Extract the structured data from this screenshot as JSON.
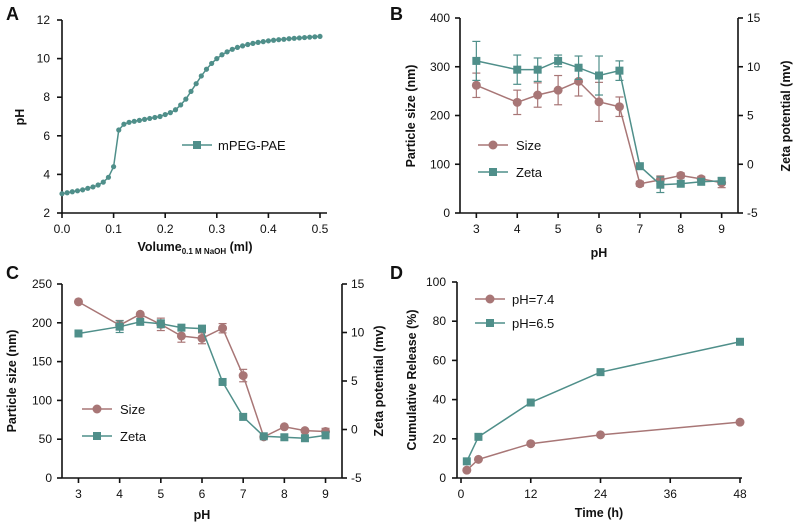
{
  "colors": {
    "teal": "#4f8f8a",
    "rose": "#a87676",
    "axis": "#111111"
  },
  "chart_data": [
    {
      "panel": "A",
      "type": "line",
      "xlabel_main": "Volume",
      "xlabel_sub": "0.1 M NaOH",
      "xlabel_unit": " (ml)",
      "ylabel": "pH",
      "xlim": [
        0,
        0.5
      ],
      "ylim": [
        2,
        12
      ],
      "xticks": [
        "0.0",
        "0.1",
        "0.2",
        "0.3",
        "0.4",
        "0.5"
      ],
      "yticks": [
        "2",
        "4",
        "6",
        "8",
        "10",
        "12"
      ],
      "legend": [
        "mPEG-PAE"
      ],
      "series": [
        {
          "name": "mPEG-PAE",
          "x": [
            0,
            0.01,
            0.02,
            0.03,
            0.04,
            0.05,
            0.06,
            0.07,
            0.08,
            0.09,
            0.1,
            0.11,
            0.12,
            0.13,
            0.14,
            0.15,
            0.16,
            0.17,
            0.18,
            0.19,
            0.2,
            0.21,
            0.22,
            0.23,
            0.24,
            0.25,
            0.26,
            0.27,
            0.28,
            0.29,
            0.3,
            0.31,
            0.32,
            0.33,
            0.34,
            0.35,
            0.36,
            0.37,
            0.38,
            0.39,
            0.4,
            0.41,
            0.42,
            0.43,
            0.44,
            0.45,
            0.46,
            0.47,
            0.48,
            0.49,
            0.5
          ],
          "y": [
            3.0,
            3.05,
            3.1,
            3.15,
            3.2,
            3.28,
            3.35,
            3.45,
            3.6,
            3.85,
            4.4,
            6.3,
            6.6,
            6.7,
            6.75,
            6.8,
            6.85,
            6.9,
            6.95,
            7.0,
            7.1,
            7.2,
            7.35,
            7.6,
            7.9,
            8.3,
            8.7,
            9.1,
            9.45,
            9.75,
            10.0,
            10.2,
            10.35,
            10.48,
            10.58,
            10.66,
            10.73,
            10.79,
            10.84,
            10.88,
            10.92,
            10.95,
            10.98,
            11.0,
            11.03,
            11.05,
            11.07,
            11.09,
            11.11,
            11.13,
            11.15
          ]
        }
      ]
    },
    {
      "panel": "B",
      "type": "line",
      "xlabel": "pH",
      "ylabel_left": "Particle size (nm)",
      "ylabel_right": "Zeta potential (mv)",
      "xlim": [
        2.6,
        9.4
      ],
      "ylim_left": [
        0,
        400
      ],
      "ylim_right": [
        -5,
        15
      ],
      "xticks": [
        "3",
        "4",
        "5",
        "6",
        "7",
        "8",
        "9"
      ],
      "yticks_left": [
        "0",
        "100",
        "200",
        "300",
        "400"
      ],
      "yticks_right": [
        "-5",
        "0",
        "5",
        "10",
        "15"
      ],
      "legend": [
        "Size",
        "Zeta"
      ],
      "series": [
        {
          "name": "Size",
          "axis": "left",
          "x": [
            3,
            4,
            4.5,
            5,
            5.5,
            6,
            6.5,
            7,
            7.5,
            8,
            8.5,
            9
          ],
          "y": [
            262,
            227,
            242,
            252,
            270,
            228,
            218,
            60,
            68,
            77,
            70,
            62
          ],
          "err": [
            25,
            25,
            25,
            30,
            30,
            40,
            20,
            5,
            8,
            5,
            5,
            10
          ]
        },
        {
          "name": "Zeta",
          "axis": "right",
          "x": [
            3,
            4,
            4.5,
            5,
            5.5,
            6,
            6.5,
            7,
            7.5,
            8,
            8.5,
            9
          ],
          "y": [
            10.6,
            9.7,
            9.7,
            10.6,
            9.9,
            9.1,
            9.6,
            -0.2,
            -2.1,
            -2.0,
            -1.8,
            -1.7
          ],
          "err": [
            2,
            1.5,
            1.2,
            0.6,
            1.2,
            2,
            1,
            0,
            0.8,
            0,
            0,
            0
          ]
        }
      ]
    },
    {
      "panel": "C",
      "type": "line",
      "xlabel": "pH",
      "ylabel_left": "Particle size (nm)",
      "ylabel_right": "Zeta potential (mv)",
      "xlim": [
        2.6,
        9.4
      ],
      "ylim_left": [
        0,
        250
      ],
      "ylim_right": [
        -5,
        15
      ],
      "xticks": [
        "3",
        "4",
        "5",
        "6",
        "7",
        "8",
        "9"
      ],
      "yticks_left": [
        "0",
        "50",
        "100",
        "150",
        "200",
        "250"
      ],
      "yticks_right": [
        "-5",
        "0",
        "5",
        "10",
        "15"
      ],
      "legend": [
        "Size",
        "Zeta"
      ],
      "series": [
        {
          "name": "Size",
          "axis": "left",
          "x": [
            3,
            4,
            4.5,
            5,
            5.5,
            6,
            6.5,
            7,
            7.5,
            8,
            8.5,
            9
          ],
          "y": [
            227,
            197,
            211,
            198,
            183,
            180,
            193,
            132,
            53,
            66,
            61,
            60
          ],
          "err": [
            0,
            6,
            0,
            8,
            8,
            7,
            6,
            8,
            0,
            0,
            0,
            4
          ]
        },
        {
          "name": "Zeta",
          "axis": "right",
          "x": [
            3,
            4,
            4.5,
            5,
            5.5,
            6,
            6.5,
            7,
            7.5,
            8,
            8.5,
            9
          ],
          "y": [
            9.9,
            10.6,
            11.1,
            10.9,
            10.5,
            10.4,
            4.9,
            1.3,
            -0.7,
            -0.8,
            -0.9,
            -0.6
          ],
          "err": [
            0,
            0.6,
            0,
            0.4,
            0,
            0,
            0,
            0,
            0,
            0,
            0,
            0
          ]
        }
      ]
    },
    {
      "panel": "D",
      "type": "line",
      "xlabel": "Time (h)",
      "ylabel": "Cumulative Release (%)",
      "xlim": [
        0,
        48
      ],
      "ylim": [
        0,
        100
      ],
      "xticks": [
        "0",
        "12",
        "24",
        "36",
        "48"
      ],
      "yticks": [
        "0",
        "20",
        "40",
        "60",
        "80",
        "100"
      ],
      "legend": [
        "pH=7.4",
        "pH=6.5"
      ],
      "series": [
        {
          "name": "pH=7.4",
          "x": [
            1,
            3,
            12,
            24,
            48
          ],
          "y": [
            4,
            9.5,
            17.5,
            22,
            28.5
          ]
        },
        {
          "name": "pH=6.5",
          "x": [
            1,
            3,
            12,
            24,
            48
          ],
          "y": [
            8.5,
            21,
            38.5,
            54,
            69.5
          ]
        }
      ]
    }
  ]
}
